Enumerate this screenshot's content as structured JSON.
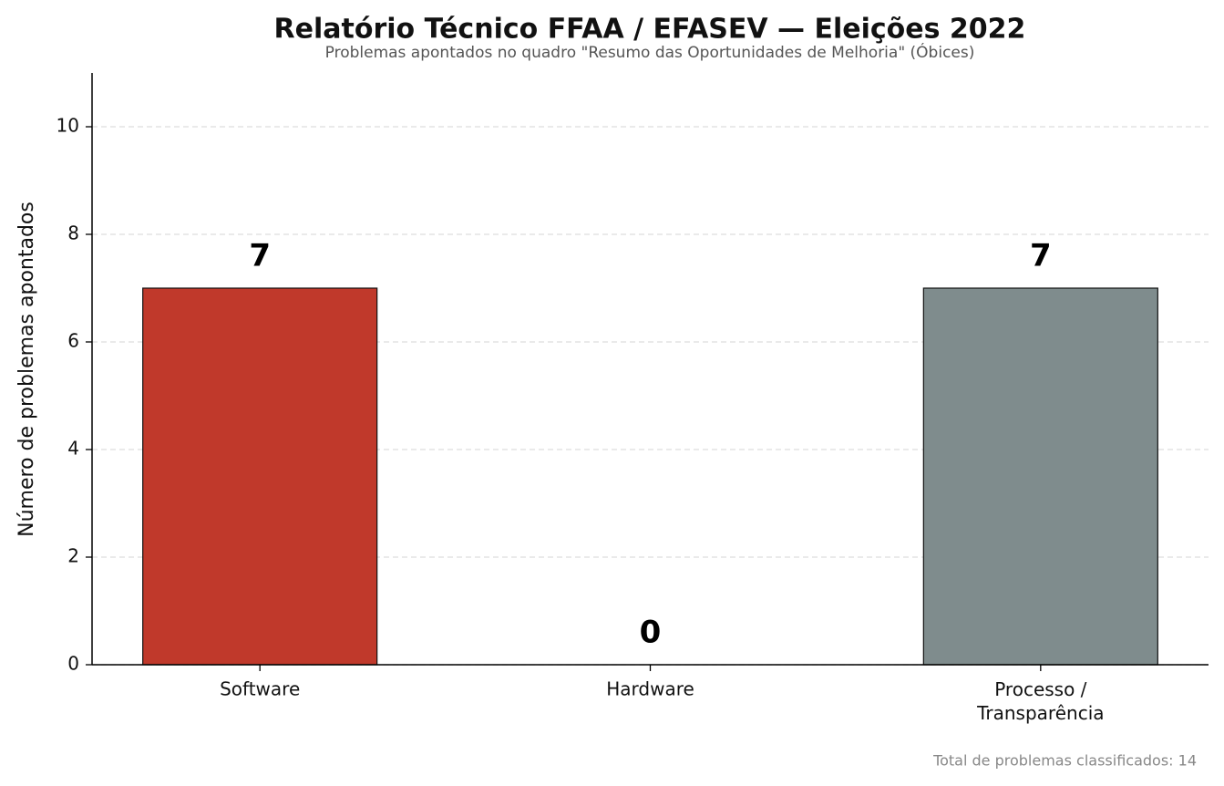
{
  "chart_data": {
    "type": "bar",
    "title": "Relatório Técnico FFAA / EFASEV — Eleições 2022",
    "subtitle": "Problemas apontados no quadro \"Resumo das Oportunidades de Melhoria\" (Óbices)",
    "ylabel": "Número de problemas apontados",
    "categories": [
      "Software",
      "Hardware",
      "Processo /\nTransparência"
    ],
    "values": [
      7,
      0,
      7
    ],
    "colors": [
      "#c0392b",
      "#2c3e50",
      "#7f8c8d"
    ],
    "ylim": [
      0,
      11
    ],
    "yticks": [
      0,
      2,
      4,
      6,
      8,
      10
    ],
    "grid": true,
    "footnote": "Total de problemas classificados: 14"
  }
}
